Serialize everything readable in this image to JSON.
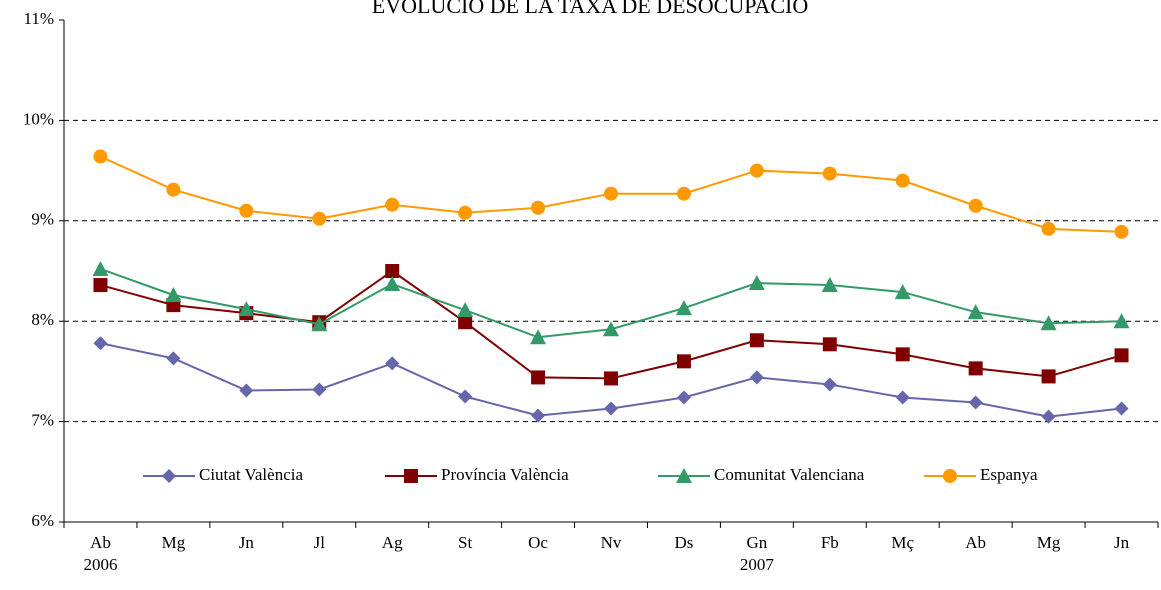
{
  "chart_data": {
    "type": "line",
    "title": "EVOLUCIÓ DE LA TAXA DE DESOCUPACIÓ",
    "categories": [
      "Ab",
      "Mg",
      "Jn",
      "Jl",
      "Ag",
      "St",
      "Oc",
      "Nv",
      "Ds",
      "Gn",
      "Fb",
      "Mç",
      "Ab",
      "Mg",
      "Jn"
    ],
    "year_labels": [
      "2006",
      null,
      null,
      null,
      null,
      null,
      null,
      null,
      null,
      "2007",
      null,
      null,
      null,
      null,
      null
    ],
    "series": [
      {
        "name": "Ciutat València",
        "color": "#6666aa",
        "marker": "diamond",
        "values": [
          7.78,
          7.63,
          7.31,
          7.32,
          7.58,
          7.25,
          7.06,
          7.13,
          7.24,
          7.44,
          7.37,
          7.24,
          7.19,
          7.05,
          7.13
        ]
      },
      {
        "name": "Província València",
        "color": "#800000",
        "marker": "square",
        "values": [
          8.36,
          8.16,
          8.08,
          7.99,
          8.5,
          7.99,
          7.44,
          7.43,
          7.6,
          7.81,
          7.77,
          7.67,
          7.53,
          7.45,
          7.66
        ]
      },
      {
        "name": "Comunitat Valenciana",
        "color": "#339966",
        "marker": "triangle",
        "values": [
          8.52,
          8.26,
          8.12,
          7.97,
          8.37,
          8.11,
          7.84,
          7.92,
          8.13,
          8.38,
          8.36,
          8.29,
          8.09,
          7.98,
          8.0
        ]
      },
      {
        "name": "Espanya",
        "color": "#ff9900",
        "marker": "circle",
        "values": [
          9.64,
          9.31,
          9.1,
          9.02,
          9.16,
          9.08,
          9.13,
          9.27,
          9.27,
          9.5,
          9.47,
          9.4,
          9.15,
          8.92,
          8.89
        ]
      }
    ],
    "ylim": [
      6,
      11
    ],
    "yticks": [
      {
        "value": 6,
        "label": "6%"
      },
      {
        "value": 7,
        "label": "7%"
      },
      {
        "value": 8,
        "label": "8%"
      },
      {
        "value": 9,
        "label": "9%"
      },
      {
        "value": 10,
        "label": "10%"
      },
      {
        "value": 11,
        "label": "11%"
      }
    ],
    "grid": true,
    "legend": "bottom"
  }
}
